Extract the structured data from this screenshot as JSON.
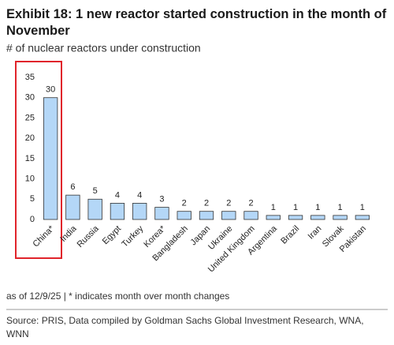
{
  "chart_data": {
    "type": "bar",
    "title": "Exhibit 18: 1 new reactor started construction in the month of November",
    "subtitle": "# of nuclear reactors under construction",
    "categories": [
      "China*",
      "India",
      "Russia",
      "Egypt",
      "Turkey",
      "Korea*",
      "Bangladesh",
      "Japan",
      "Ukraine",
      "United Kingdom",
      "Argentina",
      "Brazil",
      "Iran",
      "Slovak",
      "Pakistan"
    ],
    "values": [
      30,
      6,
      5,
      4,
      4,
      3,
      2,
      2,
      2,
      2,
      1,
      1,
      1,
      1,
      1
    ],
    "color": "#b4d7f7",
    "ylim": [
      0,
      35
    ],
    "yticks": [
      0,
      5,
      10,
      15,
      20,
      25,
      30,
      35
    ],
    "grid": false,
    "note": "as of 12/9/25 | * indicates month over month changes",
    "source": "Source: PRIS, Data compiled by Goldman Sachs Global Investment Research, WNA, WNN"
  }
}
